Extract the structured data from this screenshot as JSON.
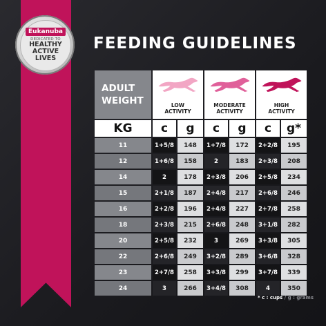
{
  "brand": {
    "name": "Eukanuba",
    "tagline_small": "DEDICATED TO",
    "tagline_big": [
      "HEALTHY",
      "ACTIVE",
      "LIVES"
    ],
    "accent": "#c0135a"
  },
  "title": "FEEDING GUIDELINES",
  "header": {
    "weight_label_1": "ADULT",
    "weight_label_2": "WEIGHT",
    "activities": [
      {
        "line1": "LOW",
        "line2": "ACTIVITY",
        "color": "#f2a6c4"
      },
      {
        "line1": "MODERATE",
        "line2": "ACTIVITY",
        "color": "#e0609a"
      },
      {
        "line1": "HIGH",
        "line2": "ACTIVITY",
        "color": "#c0135a"
      }
    ],
    "kg": "KG",
    "c": "c",
    "g": "g",
    "g_star": "g*"
  },
  "rows": [
    {
      "kg": "11",
      "v": [
        "1+5/8",
        "148",
        "1+7/8",
        "172",
        "2+2/8",
        "195"
      ]
    },
    {
      "kg": "12",
      "v": [
        "1+6/8",
        "158",
        "2",
        "183",
        "2+3/8",
        "208"
      ]
    },
    {
      "kg": "14",
      "v": [
        "2",
        "178",
        "2+3/8",
        "206",
        "2+5/8",
        "234"
      ]
    },
    {
      "kg": "15",
      "v": [
        "2+1/8",
        "187",
        "2+4/8",
        "217",
        "2+6/8",
        "246"
      ]
    },
    {
      "kg": "16",
      "v": [
        "2+2/8",
        "196",
        "2+4/8",
        "227",
        "2+7/8",
        "258"
      ]
    },
    {
      "kg": "18",
      "v": [
        "2+3/8",
        "215",
        "2+6/8",
        "248",
        "3+1/8",
        "282"
      ]
    },
    {
      "kg": "20",
      "v": [
        "2+5/8",
        "232",
        "3",
        "269",
        "3+3/8",
        "305"
      ]
    },
    {
      "kg": "22",
      "v": [
        "2+6/8",
        "249",
        "3+2/8",
        "289",
        "3+6/8",
        "328"
      ]
    },
    {
      "kg": "23",
      "v": [
        "2+7/8",
        "258",
        "3+3/8",
        "299",
        "3+7/8",
        "339"
      ]
    },
    {
      "kg": "24",
      "v": [
        "3",
        "266",
        "3+4/8",
        "308",
        "4",
        "350"
      ]
    }
  ],
  "footnote": {
    "a": "* c : cups",
    "sep": " / ",
    "b": "g : grams"
  }
}
